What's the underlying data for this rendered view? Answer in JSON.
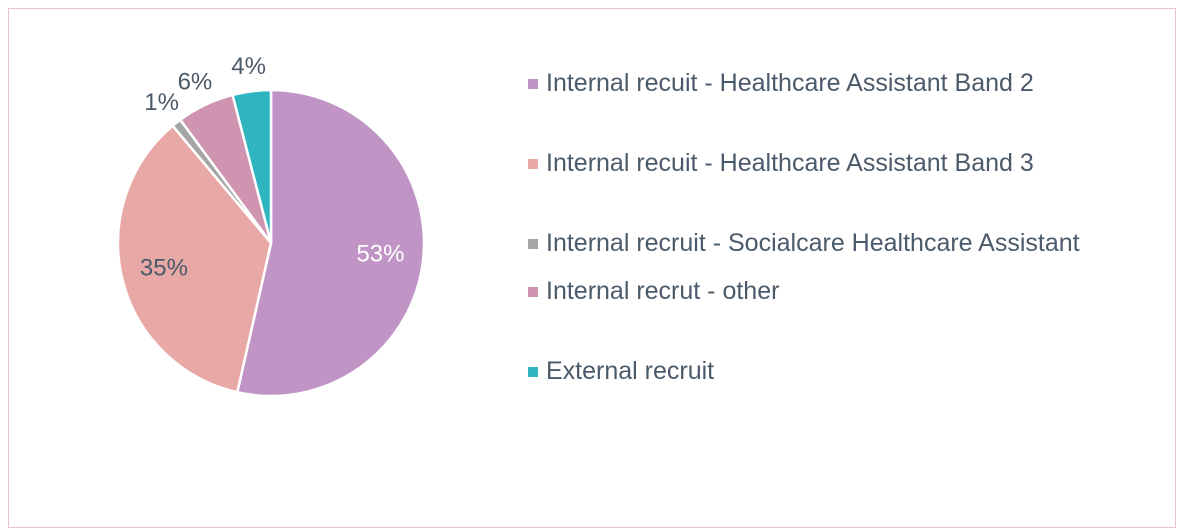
{
  "chart_data": {
    "type": "pie",
    "categories": [
      "Internal recuit - Healthcare Assistant Band 2",
      "Internal recuit - Healthcare Assistant Band 3",
      "Internal recruit - Socialcare Healthcare Assistant",
      "Internal recrut - other",
      "External recruit"
    ],
    "values": [
      53,
      35,
      1,
      6,
      4
    ],
    "value_labels": [
      "53%",
      "35%",
      "1%",
      "6%",
      "4%"
    ],
    "colors": [
      "#c095c6",
      "#e8a9a6",
      "#a5a5a5",
      "#cf94b0",
      "#2fb5bf"
    ],
    "legend": "right"
  }
}
